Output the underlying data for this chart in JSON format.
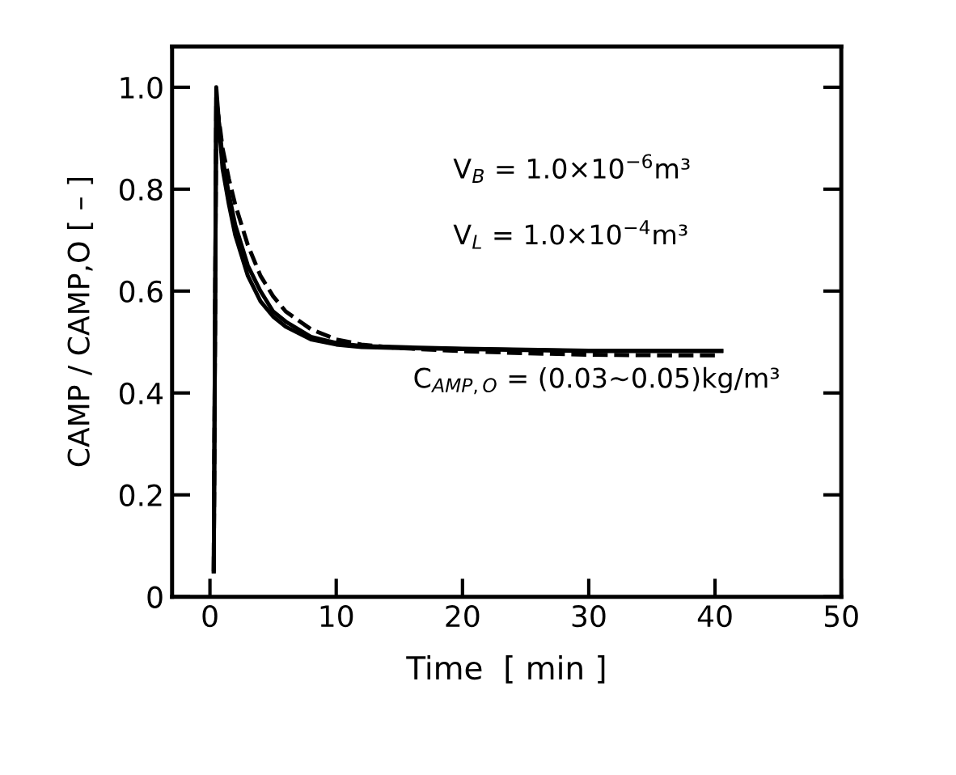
{
  "chart_data": {
    "type": "line",
    "xlabel": "Time  [ min ]",
    "ylabel": "CAMP / CAMP,O [ – ]",
    "xlim": [
      -3,
      50
    ],
    "xticks": [
      0,
      10,
      20,
      30,
      40,
      50
    ],
    "ylim": [
      0,
      1.08
    ],
    "yticks": [
      0,
      0.2,
      0.4,
      0.6,
      0.8,
      {
        "value": 1.0,
        "label": "1.0"
      }
    ],
    "grid": false,
    "marker": "none",
    "series": [
      {
        "color": "#000000",
        "line_style": "solid",
        "x": [
          0.3,
          0.5,
          0.8,
          1,
          1.5,
          2,
          3,
          4,
          5,
          6,
          8,
          10,
          12,
          15,
          20,
          25,
          30,
          35,
          40.5
        ],
        "values": [
          0.05,
          1.0,
          0.9,
          0.84,
          0.77,
          0.71,
          0.63,
          0.58,
          0.55,
          0.53,
          0.505,
          0.495,
          0.49,
          0.488,
          0.486,
          0.484,
          0.482,
          0.482,
          0.482
        ]
      },
      {
        "color": "#000000",
        "line_style": "solid",
        "x": [
          0.3,
          0.5,
          0.8,
          1,
          1.5,
          2,
          3,
          4,
          5,
          6,
          8,
          10,
          12,
          15,
          20,
          25,
          30,
          35,
          40.5
        ],
        "values": [
          0.05,
          0.98,
          0.91,
          0.86,
          0.79,
          0.73,
          0.65,
          0.6,
          0.56,
          0.54,
          0.51,
          0.498,
          0.492,
          0.49,
          0.487,
          0.485,
          0.483,
          0.483,
          0.483
        ]
      },
      {
        "color": "#000000",
        "line_style": "dashed",
        "x": [
          0.3,
          0.5,
          0.8,
          1,
          1.5,
          2,
          3,
          4,
          5,
          6,
          8,
          10,
          12,
          15,
          20,
          25,
          30,
          35,
          40.5
        ],
        "values": [
          0.05,
          0.97,
          0.92,
          0.88,
          0.82,
          0.77,
          0.69,
          0.63,
          0.59,
          0.56,
          0.525,
          0.505,
          0.495,
          0.488,
          0.482,
          0.478,
          0.475,
          0.474,
          0.474
        ]
      }
    ],
    "annotations": [
      "V$_{B}$ = 1.0×10$^{−6}$m³",
      "V$_{L}$ = 1.0×10$^{−4}$m³",
      "C$_{AMP,O}$ = (0.03∼0.05)kg/m³"
    ]
  }
}
